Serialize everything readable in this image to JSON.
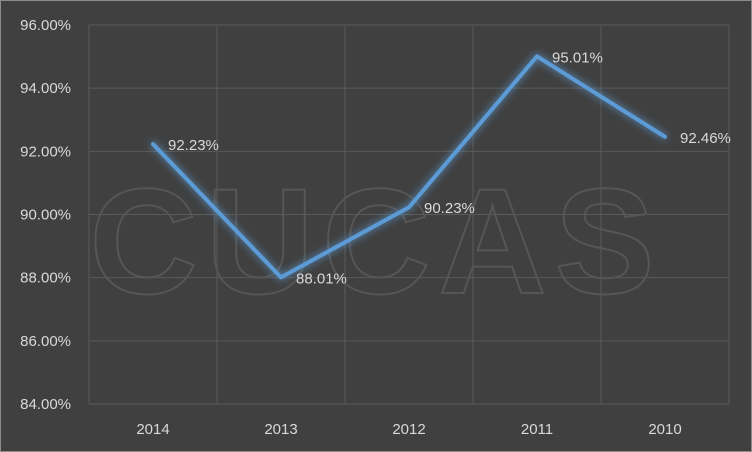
{
  "watermark_text": "CUCAS",
  "colors": {
    "background": "#404040",
    "grid": "#5a5a5a",
    "line": "#5b9bd5",
    "text": "#d9d9d9"
  },
  "chart_data": {
    "type": "line",
    "title": "",
    "xlabel": "",
    "ylabel": "",
    "categories": [
      "2014",
      "2013",
      "2012",
      "2011",
      "2010"
    ],
    "series": [
      {
        "values": [
          92.23,
          88.01,
          90.23,
          95.01,
          92.46
        ],
        "labels": [
          "92.23%",
          "88.01%",
          "90.23%",
          "95.01%",
          "92.46%"
        ]
      }
    ],
    "ylim": [
      84,
      96
    ],
    "yticks": [
      84,
      86,
      88,
      90,
      92,
      94,
      96
    ],
    "ytick_labels": [
      "84.00%",
      "86.00%",
      "88.00%",
      "90.00%",
      "92.00%",
      "94.00%",
      "96.00%"
    ],
    "grid": true,
    "legend": "none"
  }
}
